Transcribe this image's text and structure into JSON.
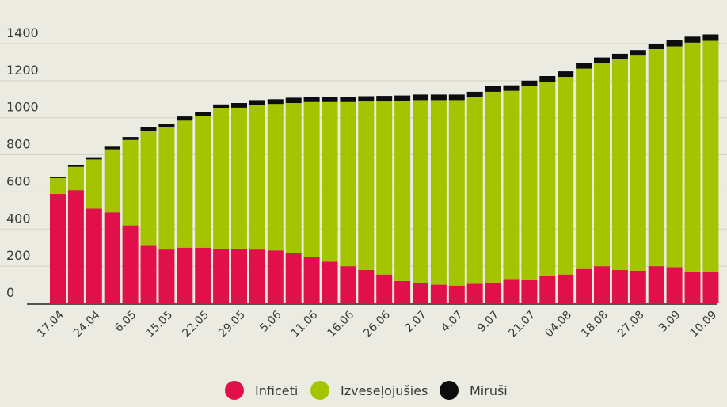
{
  "chart_data": {
    "type": "bar",
    "stacked": true,
    "ylim": [
      0,
      1500
    ],
    "yticks": [
      0,
      200,
      400,
      600,
      800,
      1000,
      1200,
      1400
    ],
    "grid": true,
    "legend_position": "bottom-center",
    "x_tick_labels": [
      "17.04",
      "24.04",
      "6.05",
      "15.05",
      "22.05",
      "29.05",
      "5.06",
      "11.06",
      "16.06",
      "26.06",
      "2.07",
      "4.07",
      "9.07",
      "21.07",
      "04.08",
      "18.08",
      "27.08",
      "3.09",
      "10.09"
    ],
    "series": [
      {
        "name": "Inficēti",
        "color": "#e2104a",
        "values": [
          590,
          610,
          510,
          490,
          420,
          310,
          290,
          300,
          300,
          295,
          295,
          290,
          285,
          270,
          250,
          225,
          200,
          180,
          155,
          120,
          110,
          100,
          95,
          105,
          110,
          130,
          125,
          145,
          155,
          185,
          200,
          180,
          175,
          200,
          195,
          170,
          170
        ]
      },
      {
        "name": "Izveseļojušies",
        "color": "#a4c400",
        "values": [
          85,
          125,
          265,
          340,
          460,
          620,
          660,
          685,
          710,
          755,
          760,
          780,
          790,
          810,
          835,
          860,
          885,
          908,
          933,
          970,
          985,
          995,
          1000,
          1005,
          1030,
          1015,
          1045,
          1050,
          1065,
          1080,
          1095,
          1135,
          1160,
          1170,
          1190,
          1235,
          1245
        ]
      },
      {
        "name": "Miruši",
        "color": "#0d0d0d",
        "values": [
          8,
          10,
          12,
          14,
          16,
          18,
          18,
          22,
          22,
          22,
          25,
          25,
          25,
          28,
          28,
          28,
          28,
          28,
          30,
          30,
          30,
          30,
          30,
          30,
          30,
          30,
          30,
          30,
          30,
          30,
          30,
          30,
          30,
          30,
          32,
          32,
          34
        ]
      }
    ]
  }
}
